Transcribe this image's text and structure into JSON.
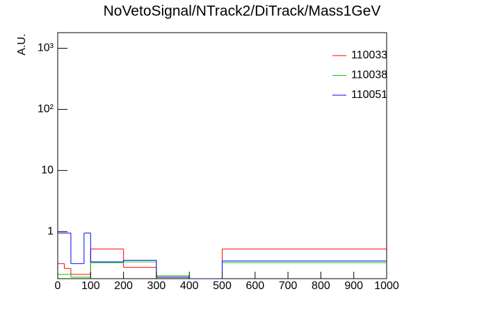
{
  "chart_data": {
    "type": "histogram",
    "title": "NoVetoSignal/NTrack2/DiTrack/Mass1GeV",
    "y_label": "A.U.",
    "bins": [
      0,
      20,
      40,
      60,
      80,
      100,
      200,
      300,
      400,
      500,
      1000
    ],
    "series": [
      {
        "name": "110033",
        "color": "#ff0000",
        "values": [
          0.3,
          0.25,
          0.2,
          0.2,
          0.2,
          0.52,
          0.26,
          0.18,
          0.17,
          0.52
        ]
      },
      {
        "name": "110038",
        "color": "#00cc00",
        "values": [
          0.2,
          0.2,
          0.18,
          0.18,
          0.18,
          0.31,
          0.32,
          0.19,
          0.17,
          0.31
        ]
      },
      {
        "name": "110051",
        "color": "#0000ff",
        "values": [
          0.95,
          0.95,
          0.3,
          0.3,
          0.95,
          0.32,
          0.34,
          0.18,
          0.17,
          0.33
        ]
      }
    ],
    "xlim": [
      0,
      1000
    ],
    "ylim": [
      0.17,
      1800
    ],
    "xticks": [
      0,
      100,
      200,
      300,
      400,
      500,
      600,
      700,
      800,
      900,
      1000
    ],
    "yticks": [
      1,
      10,
      {
        "value": 100,
        "label": "10²"
      },
      {
        "value": 1000,
        "label": "10³"
      }
    ],
    "log_y": true,
    "legend": "top-right"
  }
}
